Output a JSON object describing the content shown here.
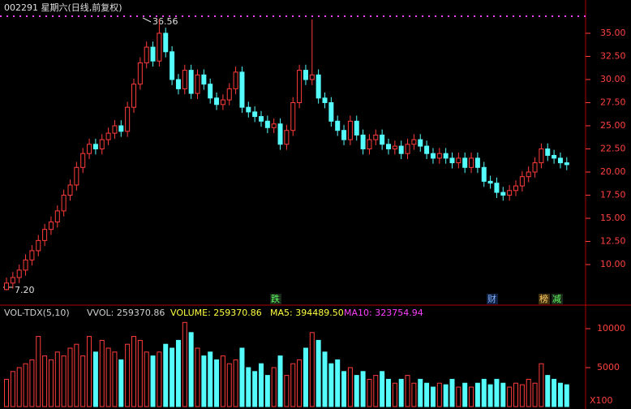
{
  "header": {
    "title": "002291 星期六(日线,前复权)"
  },
  "chart_data": {
    "type": "candlestick",
    "high_label": "36.56",
    "low_label": "7.20",
    "markers": [
      "跌",
      "财",
      "榜",
      "减"
    ],
    "up_color": "#ff3c3c",
    "down_color": "#54fcfc",
    "ylim": [
      6.58,
      37.28
    ],
    "yticks": [
      {
        "value": 10,
        "label": "10.00"
      },
      {
        "value": 12.5,
        "label": "12.50"
      },
      {
        "value": 15,
        "label": "15.00"
      },
      {
        "value": 17.5,
        "label": "17.50"
      },
      {
        "value": 20,
        "label": "20.00"
      },
      {
        "value": 22.5,
        "label": "22.50"
      },
      {
        "value": 25,
        "label": "25.00"
      },
      {
        "value": 27.5,
        "label": "27.50"
      },
      {
        "value": 30,
        "label": "30.00"
      },
      {
        "value": 32.5,
        "label": "32.50"
      },
      {
        "value": 35,
        "label": "35.00"
      }
    ],
    "open": [
      7.3,
      8.0,
      8.6,
      9.4,
      10.5,
      11.5,
      12.6,
      13.8,
      14.6,
      15.8,
      17.5,
      18.6,
      20.5,
      22.0,
      23.0,
      22.5,
      23.5,
      24.2,
      25.0,
      24.4,
      27.0,
      29.5,
      31.8,
      33.5,
      32.0,
      35.0,
      33.0,
      30.0,
      29.0,
      31.0,
      28.5,
      30.5,
      29.5,
      28.0,
      27.3,
      27.8,
      29.0,
      30.8,
      27.0,
      26.5,
      26.0,
      25.5,
      24.8,
      25.2,
      23.0,
      24.5,
      27.5,
      31.0,
      30.0,
      30.5,
      28.0,
      27.5,
      25.5,
      24.5,
      23.5,
      25.5,
      24.0,
      22.5,
      23.5,
      24.0,
      23.0,
      22.5,
      22.8,
      22.0,
      23.0,
      23.5,
      22.8,
      22.0,
      21.5,
      22.0,
      21.5,
      21.0,
      21.5,
      20.5,
      21.5,
      20.5,
      19.0,
      18.8,
      17.8,
      17.5,
      18.0,
      18.5,
      19.5,
      20.0,
      21.0,
      22.5,
      21.8,
      21.5,
      21.0
    ],
    "high": [
      8.6,
      9.2,
      10.0,
      11.1,
      12.1,
      13.2,
      14.4,
      15.2,
      16.4,
      18.1,
      19.2,
      21.1,
      22.6,
      23.6,
      23.6,
      24.1,
      24.8,
      25.6,
      25.6,
      27.6,
      30.1,
      32.4,
      34.1,
      34.1,
      36.56,
      35.6,
      33.6,
      30.6,
      31.6,
      31.6,
      31.1,
      31.1,
      30.1,
      28.6,
      28.4,
      29.6,
      31.4,
      31.4,
      27.6,
      27.1,
      26.6,
      26.1,
      25.8,
      25.8,
      25.1,
      28.1,
      31.6,
      31.6,
      36.5,
      31.1,
      28.6,
      28.1,
      26.1,
      25.1,
      26.1,
      26.1,
      24.6,
      24.1,
      24.6,
      24.6,
      23.6,
      23.4,
      23.4,
      23.6,
      24.1,
      24.1,
      23.4,
      22.6,
      22.6,
      22.6,
      22.1,
      22.1,
      22.1,
      22.1,
      22.1,
      21.1,
      19.6,
      19.4,
      18.4,
      18.6,
      19.1,
      20.1,
      20.6,
      21.6,
      23.1,
      23.1,
      22.4,
      22.1,
      21.6
    ],
    "low": [
      7.2,
      7.4,
      8.0,
      8.8,
      9.9,
      10.9,
      12.0,
      13.2,
      14.0,
      15.2,
      16.9,
      18.0,
      19.9,
      21.4,
      21.9,
      21.9,
      22.9,
      23.6,
      23.8,
      23.8,
      26.4,
      28.9,
      31.2,
      31.4,
      31.4,
      32.4,
      29.4,
      28.4,
      28.4,
      27.9,
      27.9,
      28.9,
      27.4,
      26.7,
      26.7,
      27.2,
      28.4,
      26.4,
      25.9,
      25.4,
      24.9,
      24.2,
      24.2,
      22.4,
      22.4,
      23.9,
      26.9,
      29.4,
      29.4,
      27.4,
      26.9,
      24.9,
      23.9,
      22.9,
      22.9,
      23.4,
      21.9,
      21.9,
      22.9,
      22.4,
      21.9,
      21.9,
      21.4,
      21.4,
      22.4,
      22.2,
      21.4,
      20.9,
      20.9,
      20.9,
      20.4,
      20.4,
      19.9,
      19.9,
      19.9,
      18.4,
      18.2,
      17.2,
      16.9,
      16.9,
      17.4,
      17.9,
      18.9,
      19.4,
      20.4,
      21.2,
      20.9,
      20.4,
      20.2
    ],
    "close": [
      8.0,
      8.6,
      9.4,
      10.5,
      11.5,
      12.6,
      13.8,
      14.6,
      15.8,
      17.5,
      18.6,
      20.5,
      22.0,
      23.0,
      22.5,
      23.5,
      24.2,
      25.0,
      24.4,
      27.0,
      29.5,
      31.8,
      33.5,
      32.0,
      35.0,
      33.0,
      30.0,
      29.0,
      31.0,
      28.5,
      30.5,
      29.5,
      28.0,
      27.3,
      27.8,
      29.0,
      30.8,
      27.0,
      26.5,
      26.0,
      25.5,
      24.8,
      25.2,
      23.0,
      24.5,
      27.5,
      31.0,
      30.0,
      30.5,
      28.0,
      27.5,
      25.5,
      24.5,
      23.5,
      25.5,
      24.0,
      22.5,
      23.5,
      24.0,
      23.0,
      22.5,
      22.8,
      22.0,
      23.0,
      23.5,
      22.8,
      22.0,
      21.5,
      22.0,
      21.5,
      21.0,
      21.5,
      20.5,
      21.5,
      20.5,
      19.0,
      18.8,
      17.8,
      17.5,
      18.0,
      18.5,
      19.5,
      20.0,
      21.0,
      22.5,
      21.8,
      21.5,
      21.0,
      20.8
    ]
  },
  "volume_chart": {
    "type": "bar",
    "indicator": "VOL-TDX(5,10)",
    "vvol": "VVOL: 259370.86",
    "volume": "VOLUME: 259370.86",
    "ma5": "MA5: 394489.50",
    "ma10": "MA10: 323754.94",
    "unit": "X100",
    "ylim": [
      0,
      11250
    ],
    "yticks": [
      5000,
      10000
    ],
    "values": [
      3500,
      4500,
      5000,
      5500,
      6000,
      9000,
      6500,
      6000,
      7000,
      6500,
      7500,
      8000,
      6500,
      9000,
      7000,
      8500,
      7500,
      7000,
      6000,
      8000,
      9000,
      8500,
      7000,
      6500,
      7000,
      8000,
      7500,
      8500,
      10800,
      9500,
      7500,
      6500,
      7000,
      6000,
      6500,
      5500,
      6000,
      7500,
      5000,
      4500,
      5500,
      4000,
      5000,
      6500,
      4000,
      5500,
      6000,
      7500,
      9500,
      8500,
      7000,
      5500,
      6000,
      4500,
      5000,
      4000,
      4500,
      3500,
      4000,
      4500,
      3500,
      3000,
      3500,
      4000,
      3000,
      3500,
      3000,
      2500,
      3000,
      2800,
      3500,
      2500,
      3000,
      2500,
      3000,
      3500,
      2800,
      3500,
      3000,
      2500,
      3000,
      2800,
      3500,
      3000,
      5500,
      4000,
      3500,
      3000,
      2800
    ]
  }
}
